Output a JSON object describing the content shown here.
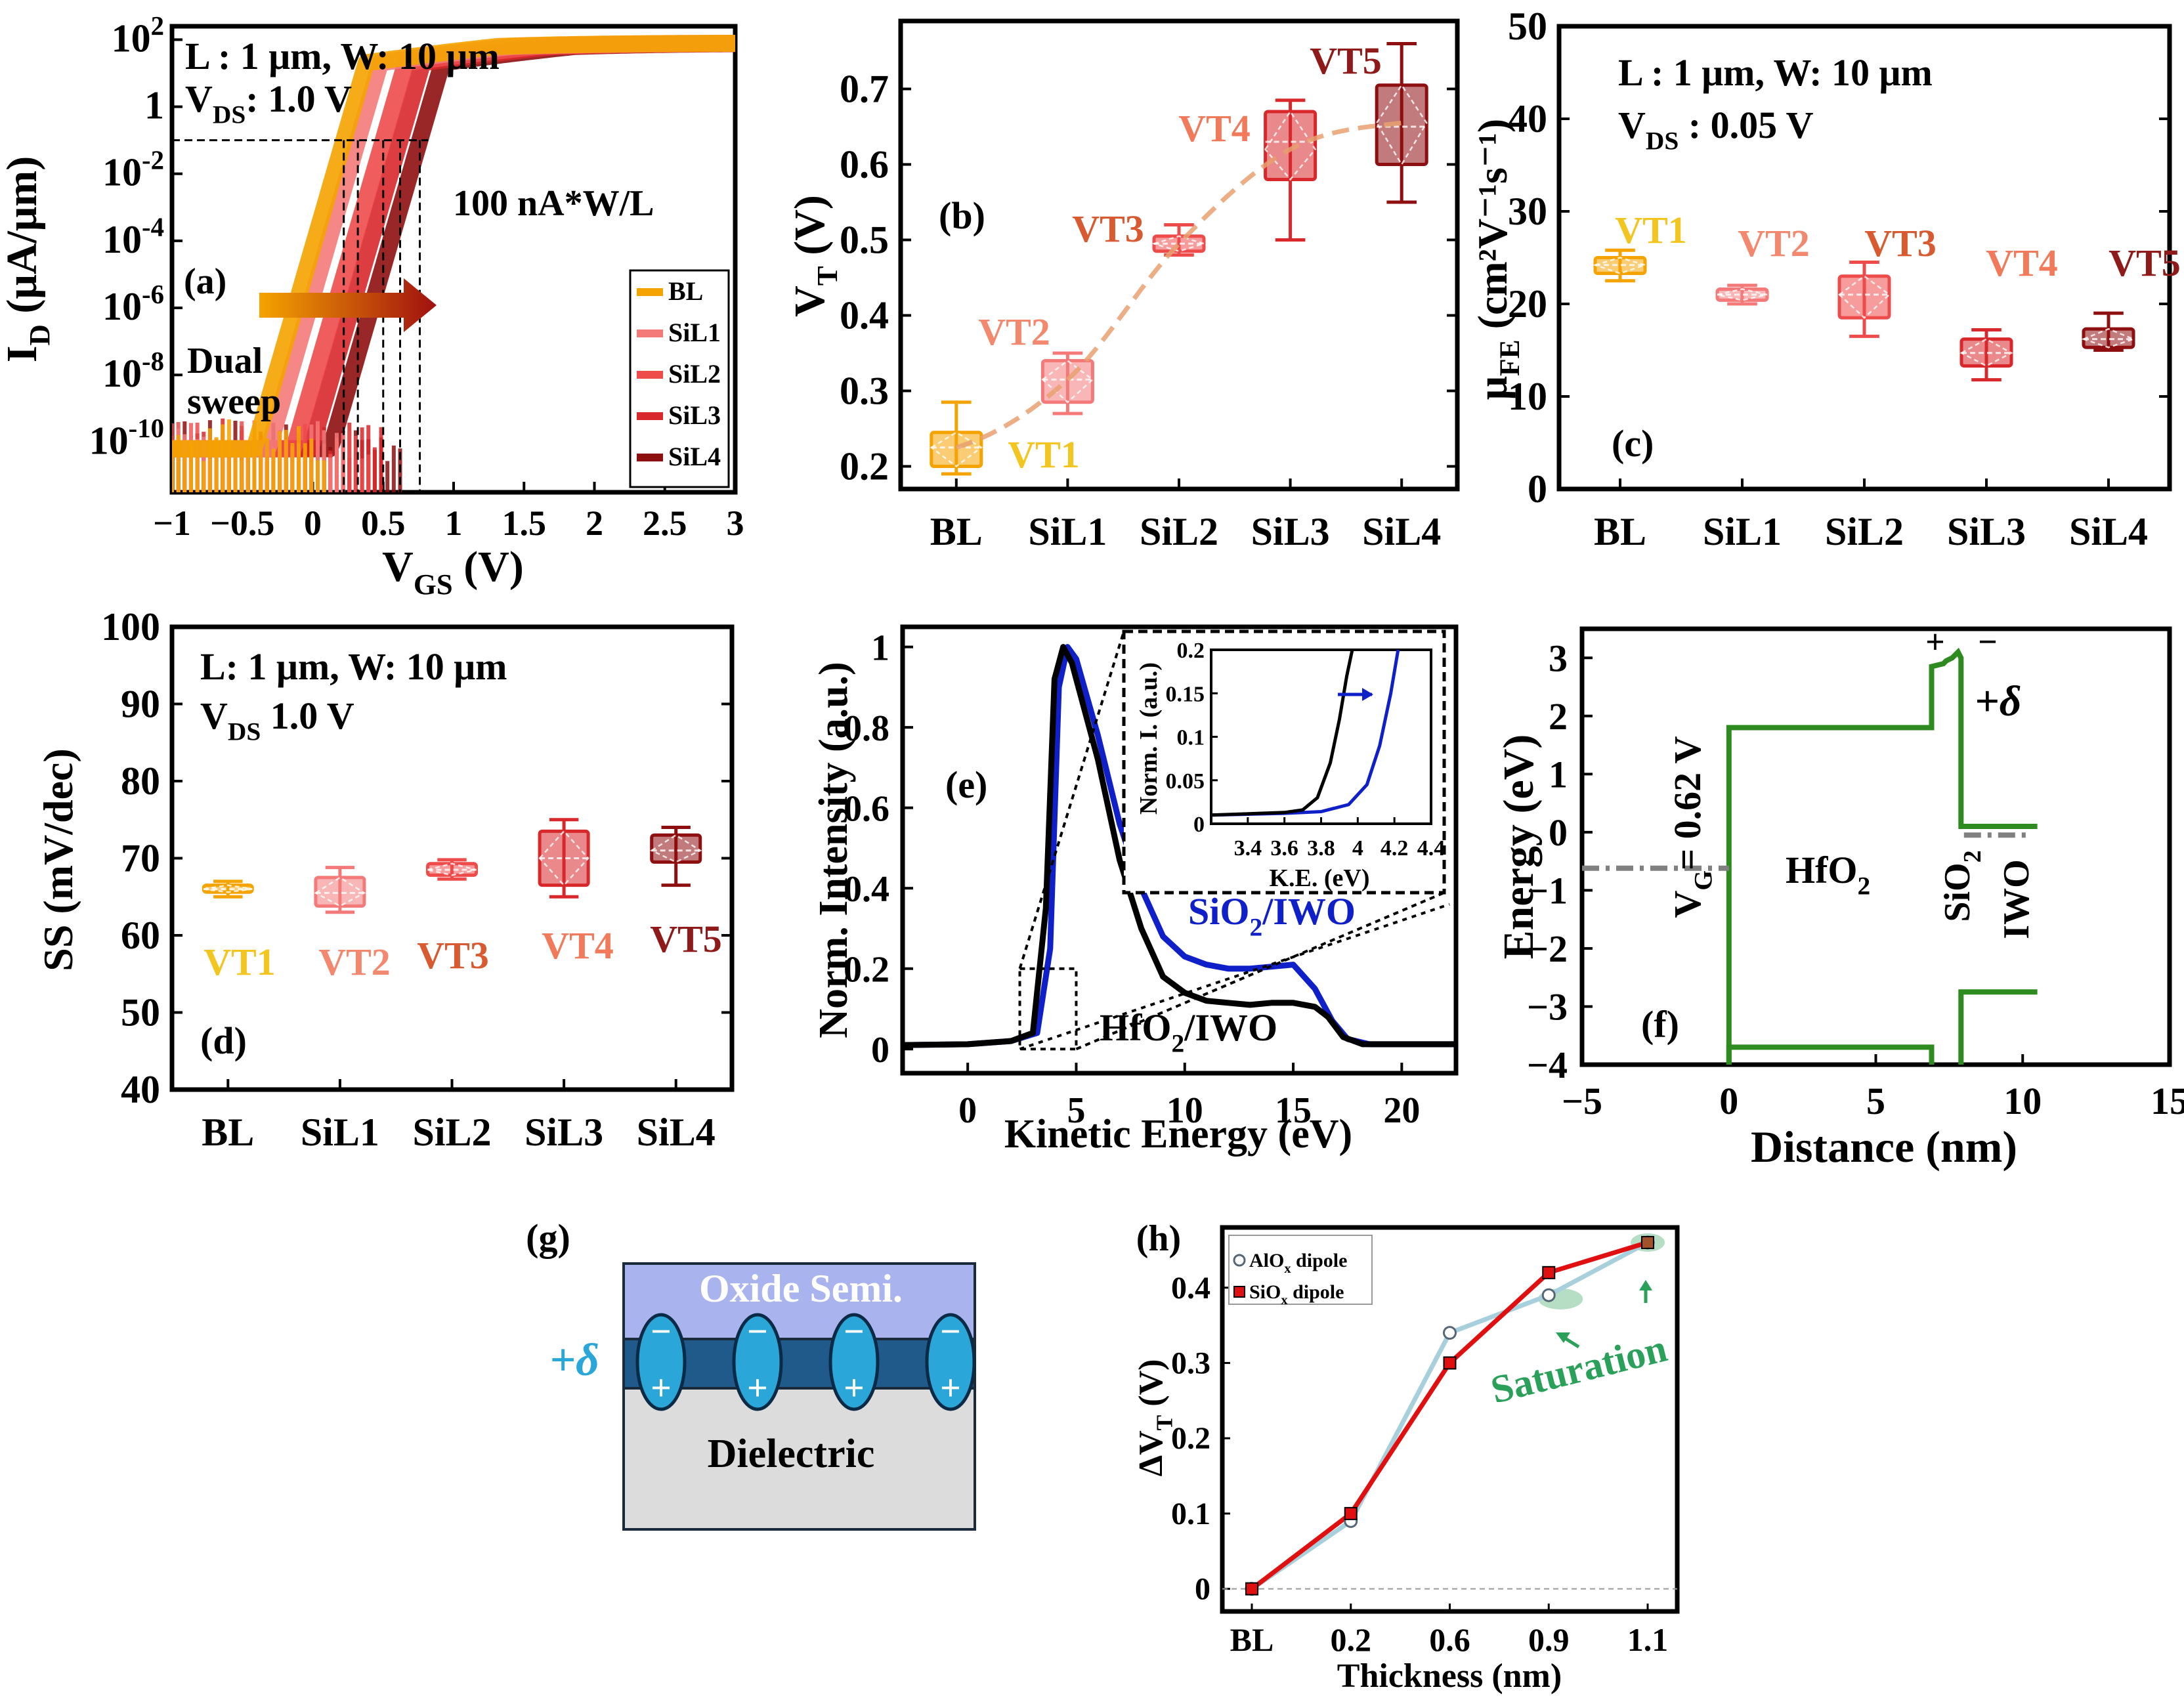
{
  "colors": {
    "BL": "#f5a300",
    "SiL1": "#f47a7a",
    "SiL2": "#ee4b4b",
    "SiL3": "#d8282b",
    "SiL4": "#8e0f10",
    "VT1": "#f3c520",
    "VT2": "#f2886d",
    "VT3": "#d85a30",
    "VT4": "#f07a5a",
    "VT5": "#8e1a1a",
    "green": "#2e8b1f",
    "blue": "#1020c8",
    "alox": "#a8d0dc",
    "siox": "#e01010",
    "saturation": "#2aa05a",
    "oxide": "#a9b4ef",
    "dipoleLayer": "#1f5a8a",
    "dipole": "#2aa7d8",
    "dielectric": "#dcdcdc",
    "delta": "#2aa7d8"
  },
  "chart_data": [
    {
      "id": "a",
      "type": "line",
      "panel_label": "(a)",
      "xlabel": "V",
      "xlabel_sub": "GS",
      "xlabel_tail": " (V)",
      "ylabel": "I",
      "ylabel_sub": "D",
      "ylabel_tail": " (μA/μm)",
      "xlim": [
        -1,
        3
      ],
      "ylim_log10": [
        -11.5,
        2.4
      ],
      "yscale": "log",
      "xticks": [
        "-1",
        "-0.5",
        "0",
        "0.5",
        "1",
        "1.5",
        "2",
        "2.5",
        "3"
      ],
      "yticks": [
        {
          "base": "10",
          "exp": "2",
          "log": 2
        },
        {
          "base": "1",
          "exp": "",
          "log": 0
        },
        {
          "base": "10",
          "exp": "-2",
          "log": -2
        },
        {
          "base": "10",
          "exp": "-4",
          "log": -4
        },
        {
          "base": "10",
          "exp": "-6",
          "log": -6
        },
        {
          "base": "10",
          "exp": "-8",
          "log": -8
        },
        {
          "base": "10",
          "exp": "-10",
          "log": -10
        }
      ],
      "annotations": {
        "cond1": "L : 1 μm, W: 10 μm",
        "cond2_main": "V",
        "cond2_sub": "DS",
        "cond2_tail": ": 1.0 V",
        "ref_current": "100 nA*W/L",
        "sweep1": "Dual",
        "sweep2": "sweep"
      },
      "legend": [
        "BL",
        "SiL1",
        "SiL2",
        "SiL3",
        "SiL4"
      ],
      "series": [
        {
          "name": "BL",
          "vt": 0.22
        },
        {
          "name": "SiL1",
          "vt": 0.32
        },
        {
          "name": "SiL2",
          "vt": 0.5
        },
        {
          "name": "SiL3",
          "vt": 0.62
        },
        {
          "name": "SiL4",
          "vt": 0.76
        }
      ],
      "ref_log10": -1
    },
    {
      "id": "b",
      "type": "box",
      "panel_label": "(b)",
      "ylabel": "V",
      "ylabel_sub": "T",
      "ylabel_tail": " (V)",
      "ylim": [
        0.17,
        0.79
      ],
      "yticks": [
        0.2,
        0.3,
        0.4,
        0.5,
        0.6,
        0.7
      ],
      "categories": [
        "BL",
        "SiL1",
        "SiL2",
        "SiL3",
        "SiL4"
      ],
      "boxes": [
        {
          "label": "VT1",
          "min": 0.19,
          "q1": 0.2,
          "median": 0.225,
          "mean": 0.225,
          "q3": 0.245,
          "max": 0.285
        },
        {
          "label": "VT2",
          "min": 0.27,
          "q1": 0.285,
          "median": 0.315,
          "mean": 0.315,
          "q3": 0.34,
          "max": 0.35
        },
        {
          "label": "VT3",
          "min": 0.48,
          "q1": 0.485,
          "median": 0.495,
          "mean": 0.495,
          "q3": 0.505,
          "max": 0.52
        },
        {
          "label": "VT4",
          "min": 0.5,
          "q1": 0.58,
          "median": 0.63,
          "mean": 0.62,
          "q3": 0.67,
          "max": 0.685
        },
        {
          "label": "VT5",
          "min": 0.55,
          "q1": 0.6,
          "median": 0.65,
          "mean": 0.655,
          "q3": 0.705,
          "max": 0.76
        }
      ],
      "trend": true
    },
    {
      "id": "c",
      "type": "box",
      "panel_label": "(c)",
      "ylabel": "μ",
      "ylabel_sub": "FE",
      "ylabel_tail": " (cm²V⁻¹s⁻¹)",
      "ylim": [
        0,
        50
      ],
      "yticks": [
        0,
        10,
        20,
        30,
        40,
        50
      ],
      "categories": [
        "BL",
        "SiL1",
        "SiL2",
        "SiL3",
        "SiL4"
      ],
      "annotations": {
        "cond1": "L : 1 μm, W: 10 μm",
        "cond2_main": "V",
        "cond2_sub": "DS",
        "cond2_tail": " : 0.05 V"
      },
      "boxes": [
        {
          "label": "VT1",
          "min": 22.5,
          "q1": 23.3,
          "median": 24.2,
          "mean": 24.2,
          "q3": 25.0,
          "max": 25.8
        },
        {
          "label": "VT2",
          "min": 20.0,
          "q1": 20.4,
          "median": 21.0,
          "mean": 21.0,
          "q3": 21.6,
          "max": 22.0
        },
        {
          "label": "VT3",
          "min": 16.5,
          "q1": 18.5,
          "median": 21.0,
          "mean": 21.0,
          "q3": 23.0,
          "max": 24.5
        },
        {
          "label": "VT4",
          "min": 11.8,
          "q1": 13.3,
          "median": 14.7,
          "mean": 14.7,
          "q3": 16.2,
          "max": 17.2
        },
        {
          "label": "VT5",
          "min": 15.0,
          "q1": 15.3,
          "median": 16.2,
          "mean": 16.2,
          "q3": 17.3,
          "max": 19.0
        }
      ]
    },
    {
      "id": "d",
      "type": "box",
      "panel_label": "(d)",
      "ylabel": "SS (mV/dec)",
      "ylim": [
        40,
        100
      ],
      "yticks": [
        40,
        50,
        60,
        70,
        80,
        90,
        100
      ],
      "categories": [
        "BL",
        "SiL1",
        "SiL2",
        "SiL3",
        "SiL4"
      ],
      "annotations": {
        "cond1": "L: 1 μm, W: 10 μm",
        "cond2_main": "V",
        "cond2_sub": "DS",
        "cond2_tail": " 1.0 V"
      },
      "boxes": [
        {
          "label": "VT1",
          "min": 65.0,
          "q1": 65.6,
          "median": 66.0,
          "mean": 66.0,
          "q3": 66.5,
          "max": 67.0
        },
        {
          "label": "VT2",
          "min": 63.0,
          "q1": 63.8,
          "median": 65.5,
          "mean": 65.5,
          "q3": 67.5,
          "max": 68.8
        },
        {
          "label": "VT3",
          "min": 67.3,
          "q1": 67.8,
          "median": 68.5,
          "mean": 68.5,
          "q3": 69.3,
          "max": 69.8
        },
        {
          "label": "VT4",
          "min": 65.0,
          "q1": 66.5,
          "median": 70.0,
          "mean": 70.0,
          "q3": 73.5,
          "max": 75.0
        },
        {
          "label": "VT5",
          "min": 66.5,
          "q1": 69.5,
          "median": 71.0,
          "mean": 71.0,
          "q3": 73.0,
          "max": 74.0
        }
      ]
    },
    {
      "id": "e",
      "type": "line",
      "panel_label": "(e)",
      "xlabel": "Kinetic Energy (eV)",
      "ylabel": "Norm. Intensity (a.u.)",
      "xlim": [
        -3,
        22.5
      ],
      "ylim": [
        -0.06,
        1.05
      ],
      "xticks": [
        0,
        5,
        10,
        15,
        20
      ],
      "yticks": [
        0,
        0.2,
        0.4,
        0.6,
        0.8,
        1
      ],
      "series": [
        {
          "name": "SiO2/IWO",
          "label_main": "SiO",
          "label_sub": "2",
          "label_tail": "/IWO",
          "color": "blue",
          "x": [
            -3,
            0,
            2,
            3.2,
            3.8,
            4.2,
            4.6,
            5.0,
            6,
            7,
            8,
            9,
            10,
            11,
            12,
            13,
            14,
            15,
            16,
            16.8,
            17.5,
            18.5,
            22.5
          ],
          "y": [
            0.01,
            0.012,
            0.02,
            0.04,
            0.25,
            0.9,
            1.0,
            0.97,
            0.78,
            0.56,
            0.4,
            0.28,
            0.23,
            0.21,
            0.2,
            0.2,
            0.205,
            0.21,
            0.15,
            0.07,
            0.025,
            0.012,
            0.012
          ]
        },
        {
          "name": "HfO2/IWO",
          "label_main": "HfO",
          "label_sub": "2",
          "label_tail": "/IWO",
          "color": "black",
          "x": [
            -3,
            0,
            2,
            3.0,
            3.6,
            4.0,
            4.4,
            4.8,
            6,
            7,
            8,
            9,
            10,
            11,
            12,
            13,
            14,
            15,
            16,
            16.6,
            17.3,
            18.2,
            22.5
          ],
          "y": [
            0.01,
            0.012,
            0.02,
            0.04,
            0.35,
            0.92,
            1.0,
            0.96,
            0.72,
            0.47,
            0.3,
            0.18,
            0.14,
            0.12,
            0.115,
            0.11,
            0.115,
            0.115,
            0.105,
            0.08,
            0.03,
            0.012,
            0.012
          ]
        }
      ],
      "inset": {
        "xlabel": "K.E. (eV)",
        "ylabel": "Norm. I. (a.u.)",
        "xlim": [
          3.2,
          4.4
        ],
        "ylim": [
          0,
          0.2
        ],
        "xticks": [
          "3.4",
          "3.6",
          "3.8",
          "4",
          "4.2",
          "4.4"
        ],
        "xtick_values": [
          3.4,
          3.6,
          3.8,
          4.0,
          4.2,
          4.4
        ],
        "yticks": [
          0,
          0.05,
          0.1,
          0.15,
          0.2
        ],
        "series": [
          {
            "name": "SiO2/IWO",
            "color": "blue",
            "x": [
              3.2,
              3.6,
              3.8,
              3.95,
              4.05,
              4.12,
              4.18,
              4.22
            ],
            "y": [
              0.01,
              0.012,
              0.014,
              0.022,
              0.045,
              0.09,
              0.15,
              0.2
            ]
          },
          {
            "name": "HfO2/IWO",
            "color": "black",
            "x": [
              3.2,
              3.6,
              3.7,
              3.78,
              3.85,
              3.9,
              3.94,
              3.97
            ],
            "y": [
              0.01,
              0.013,
              0.016,
              0.03,
              0.07,
              0.12,
              0.17,
              0.2
            ]
          }
        ]
      }
    },
    {
      "id": "f",
      "type": "line",
      "panel_label": "(f)",
      "xlabel": "Distance (nm)",
      "ylabel": "Energy (eV)",
      "xlim": [
        -5,
        15
      ],
      "ylim": [
        -4,
        3.5
      ],
      "xticks": [
        -5,
        0,
        5,
        10,
        15
      ],
      "yticks": [
        -4,
        -3,
        -2,
        -1,
        0,
        1,
        2,
        3
      ],
      "series": [
        {
          "name": "conduction",
          "x": [
            0,
            0,
            6.9,
            6.9,
            7.3,
            7.4,
            7.6,
            7.8,
            7.9,
            7.9,
            10.5
          ],
          "y": [
            -4.2,
            1.8,
            1.8,
            2.85,
            2.9,
            2.95,
            3.0,
            3.1,
            3.0,
            0.1,
            0.1
          ]
        },
        {
          "name": "valence",
          "x": [
            0,
            0,
            6.9,
            6.9,
            7.9,
            7.9,
            10.5
          ],
          "y": [
            -4.2,
            -3.7,
            -3.7,
            -4.2,
            -4.2,
            -2.75,
            -2.75
          ]
        },
        {
          "name": "gate",
          "x": [
            -5,
            0
          ],
          "y": [
            -0.62,
            -0.62
          ]
        },
        {
          "name": "iwo_fermi",
          "x": [
            8.0,
            10.3
          ],
          "y": [
            -0.05,
            -0.05
          ]
        }
      ],
      "annotations": {
        "vg_main": "V",
        "vg_sub": "G",
        "vg_tail": "= 0.62 V",
        "hfo2_main": "HfO",
        "hfo2_sub": "2",
        "sio2_main": "SiO",
        "sio2_sub": "2",
        "iwo": "IWO",
        "plus": "+",
        "minus": "−",
        "delta": "+δ"
      }
    },
    {
      "id": "h",
      "type": "line",
      "panel_label": "(h)",
      "xlabel": "Thickness (nm)",
      "ylabel": "ΔV",
      "ylabel_sub": "T",
      "ylabel_tail": " (V)",
      "categories": [
        "BL",
        "0.2",
        "0.6",
        "0.9",
        "1.1"
      ],
      "ylim": [
        -0.03,
        0.48
      ],
      "yticks": [
        0,
        0.1,
        0.2,
        0.3,
        0.4
      ],
      "series": [
        {
          "name": "AlOx dipole",
          "label_main": "AlO",
          "label_sub": "x",
          "label_tail": " dipole",
          "values": [
            0,
            0.09,
            0.34,
            0.39,
            0.46
          ]
        },
        {
          "name": "SiOx dipole",
          "label_main": "SiO",
          "label_sub": "x",
          "label_tail": " dipole",
          "values": [
            0,
            0.1,
            0.3,
            0.42,
            0.46
          ]
        }
      ],
      "annotations": {
        "saturation": "Saturation"
      }
    }
  ],
  "diagram_g": {
    "panel_label": "(g)",
    "oxide_label": "Oxide Semi.",
    "dielectric_label": "Dielectric",
    "delta_label": "+δ",
    "dipole_minus": "−",
    "dipole_plus": "+",
    "dipole_count": 4
  }
}
